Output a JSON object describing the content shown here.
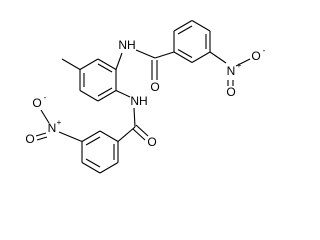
{
  "atoms": {
    "nh_top": "NH",
    "nh_bottom": "NH",
    "o_carbonyl_top": "O",
    "o_carbonyl_bottom": "O",
    "n_nitro_right": "N",
    "n_nitro_right_charge": "+",
    "o_nitro_right_single": "O",
    "o_nitro_right_single_charge": "-",
    "o_nitro_right_double": "O",
    "n_nitro_left": "N",
    "n_nitro_left_charge": "+",
    "o_nitro_left_single": "O",
    "o_nitro_left_single_charge": "-",
    "o_nitro_left_double": "O"
  }
}
